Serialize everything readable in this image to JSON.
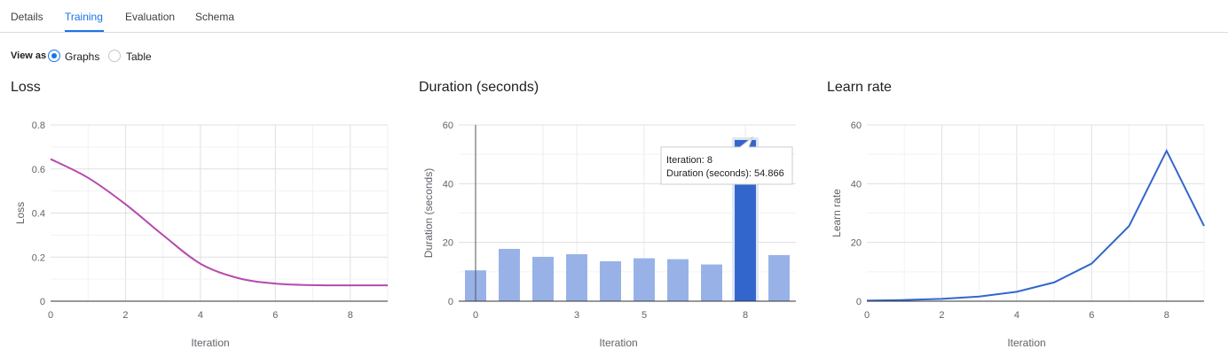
{
  "tabs": [
    {
      "label": "Details",
      "active": false
    },
    {
      "label": "Training",
      "active": true
    },
    {
      "label": "Evaluation",
      "active": false
    },
    {
      "label": "Schema",
      "active": false
    }
  ],
  "view_as": {
    "label": "View as",
    "options": [
      {
        "label": "Graphs",
        "selected": true
      },
      {
        "label": "Table",
        "selected": false
      }
    ]
  },
  "colors": {
    "accent": "#1a73e8",
    "loss_line": "#b64aad",
    "bar": "#98b2e8",
    "bar_highlight": "#3366cc",
    "learn_rate_line": "#3366cc"
  },
  "chart_data": [
    {
      "type": "line",
      "title": "Loss",
      "xlabel": "Iteration",
      "ylabel": "Loss",
      "x": [
        0,
        1,
        2,
        3,
        4,
        5,
        6,
        7,
        8,
        9
      ],
      "series": [
        {
          "values": [
            0.645,
            0.56,
            0.44,
            0.3,
            0.17,
            0.105,
            0.08,
            0.073,
            0.072,
            0.072
          ]
        }
      ],
      "xlim": [
        0,
        9
      ],
      "ylim": [
        0,
        0.8
      ],
      "xticks": [
        "0",
        "2",
        "4",
        "6",
        "8"
      ],
      "yticks": [
        "0",
        "0.2",
        "0.4",
        "0.6",
        "0.8"
      ],
      "grid": true
    },
    {
      "type": "bar",
      "title": "Duration (seconds)",
      "xlabel": "Iteration",
      "ylabel": "Duration (seconds)",
      "categories": [
        0,
        1,
        2,
        3,
        4,
        5,
        6,
        7,
        8,
        9
      ],
      "values": [
        10.5,
        17.8,
        15.1,
        16.0,
        13.6,
        14.6,
        14.3,
        12.5,
        54.866,
        15.7
      ],
      "highlighted_index": 8,
      "ylim": [
        0,
        60
      ],
      "xticks": [
        "0",
        "3",
        "5",
        "8"
      ],
      "yticks": [
        "0",
        "20",
        "40",
        "60"
      ],
      "tooltip": {
        "line1": "Iteration: 8",
        "line2": "Duration (seconds): 54.866"
      },
      "grid": true
    },
    {
      "type": "line",
      "title": "Learn rate",
      "xlabel": "Iteration",
      "ylabel": "Learn rate",
      "x": [
        0,
        1,
        2,
        3,
        4,
        5,
        6,
        7,
        8,
        9
      ],
      "series": [
        {
          "values": [
            0.2,
            0.4,
            0.8,
            1.6,
            3.2,
            6.4,
            12.8,
            25.6,
            51.2,
            25.6
          ]
        }
      ],
      "xlim": [
        0,
        9
      ],
      "ylim": [
        0,
        60
      ],
      "xticks": [
        "0",
        "2",
        "4",
        "6",
        "8"
      ],
      "yticks": [
        "0",
        "20",
        "40",
        "60"
      ],
      "grid": true
    }
  ]
}
